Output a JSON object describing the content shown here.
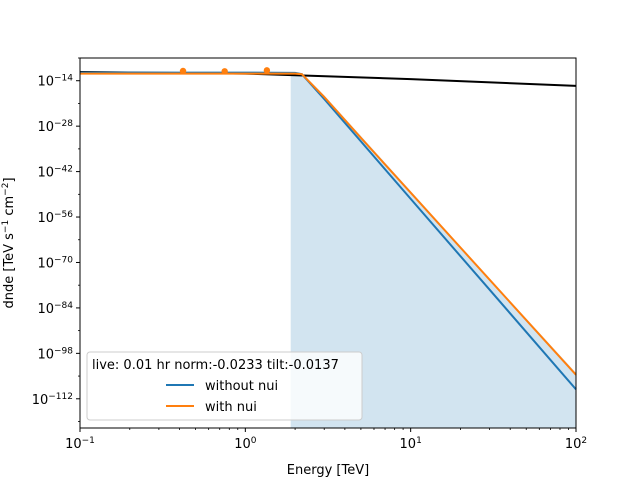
{
  "chart_data": {
    "type": "line",
    "title": "",
    "xlabel": "Energy [TeV]",
    "ylabel_base": "dnde [TeV s",
    "ylabel_sup1": "−1",
    "ylabel_mid": " cm",
    "ylabel_sup2": "−2",
    "ylabel_end": "]",
    "x_scale": "log",
    "y_scale": "log",
    "xlim": [
      0.1,
      100
    ],
    "ylim_log10": [
      -121,
      -7
    ],
    "x_ticks": [
      {
        "value": 0.1,
        "base": "10",
        "exp": "−1"
      },
      {
        "value": 1,
        "base": "10",
        "exp": "0"
      },
      {
        "value": 10,
        "base": "10",
        "exp": "1"
      },
      {
        "value": 100,
        "base": "10",
        "exp": "2"
      }
    ],
    "y_ticks": [
      {
        "log10": -14,
        "base": "10",
        "exp": "−14"
      },
      {
        "log10": -28,
        "base": "10",
        "exp": "−28"
      },
      {
        "log10": -42,
        "base": "10",
        "exp": "−42"
      },
      {
        "log10": -56,
        "base": "10",
        "exp": "−56"
      },
      {
        "log10": -70,
        "base": "10",
        "exp": "−70"
      },
      {
        "log10": -84,
        "base": "10",
        "exp": "−84"
      },
      {
        "log10": -98,
        "base": "10",
        "exp": "−98"
      },
      {
        "log10": -112,
        "base": "10",
        "exp": "−112"
      }
    ],
    "grid": false,
    "legend": {
      "title": "live: 0.01 hr norm:-0.0233 tilt:-0.0137",
      "placement": "lower left",
      "entries": [
        "without nui",
        "with nui"
      ]
    },
    "series": [
      {
        "name": "without nui",
        "color": "#1f77b4",
        "points": [
          [
            0.1,
            -11.5
          ],
          [
            0.4,
            -11.5
          ],
          [
            1.0,
            -11.5
          ],
          [
            2.0,
            -11.6
          ],
          [
            2.2,
            -12
          ],
          [
            3,
            -19.6
          ],
          [
            5,
            -32.7
          ],
          [
            10,
            -50.4
          ],
          [
            30,
            -78.4
          ],
          [
            100,
            -109.1
          ]
        ]
      },
      {
        "name": "with nui",
        "color": "#ff7f0e",
        "points": [
          [
            0.1,
            -11.8
          ],
          [
            0.4,
            -11.8
          ],
          [
            1.0,
            -11.8
          ],
          [
            2.0,
            -11.8
          ],
          [
            2.2,
            -12
          ],
          [
            3,
            -19
          ],
          [
            5,
            -31.6
          ],
          [
            10,
            -48.5
          ],
          [
            30,
            -75.3
          ],
          [
            100,
            -104.6
          ]
        ]
      },
      {
        "name": "",
        "color": "#000000",
        "points": [
          [
            0.1,
            -11.3
          ],
          [
            1,
            -11.8
          ],
          [
            10,
            -13.5
          ],
          [
            100,
            -15.6
          ]
        ]
      }
    ],
    "band": {
      "color": "#1f77b4",
      "upper": [
        [
          1.88,
          -12.5
        ],
        [
          2.1,
          -11.5
        ],
        [
          2.3,
          -12.5
        ],
        [
          3,
          -18.5
        ],
        [
          5,
          -31
        ],
        [
          10,
          -48
        ],
        [
          30,
          -75
        ],
        [
          100,
          -104
        ]
      ],
      "lower": [
        [
          1.88,
          -121
        ],
        [
          100,
          -121
        ]
      ]
    },
    "flux_points": {
      "color": "#ff7f0e",
      "points": [
        {
          "x": 0.42,
          "y": -11.0,
          "err": 0.8
        },
        {
          "x": 0.75,
          "y": -11.1,
          "err": 0.3
        },
        {
          "x": 1.35,
          "y": -10.8,
          "err": 0.4
        }
      ]
    }
  }
}
